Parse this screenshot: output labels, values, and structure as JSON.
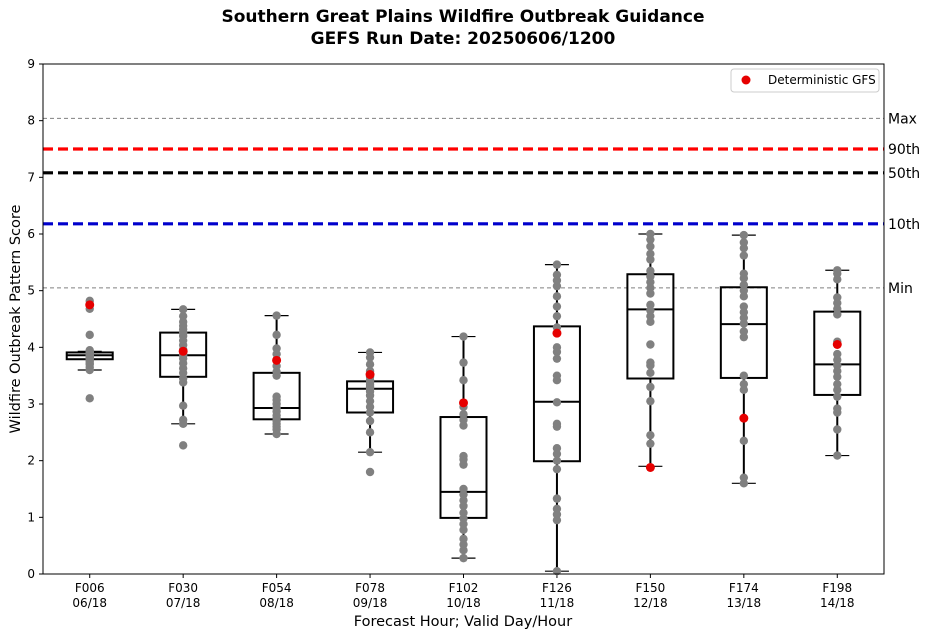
{
  "chart_data": {
    "type": "box",
    "title": "Southern Great Plains Wildfire Outbreak Guidance",
    "subtitle": "GEFS Run Date: 20250606/1200",
    "xlabel": "Forecast Hour; Valid Day/Hour",
    "ylabel": "Wildfire Outbreak Pattern Score",
    "ylim": [
      0,
      9
    ],
    "yticks": [
      0,
      1,
      2,
      3,
      4,
      5,
      6,
      7,
      8,
      9
    ],
    "grid": false,
    "legend": {
      "position": "top-right",
      "entries": [
        "Deterministic GFS"
      ]
    },
    "reference_lines": [
      {
        "label": "Max",
        "value": 8.04,
        "color": "#808080",
        "style": "dashed-thin"
      },
      {
        "label": "90th",
        "value": 7.5,
        "color": "#ff0000",
        "style": "dashed-thick"
      },
      {
        "label": "50th",
        "value": 7.08,
        "color": "#000000",
        "style": "dashed-thick"
      },
      {
        "label": "10th",
        "value": 6.18,
        "color": "#0000cc",
        "style": "dashed-thick"
      },
      {
        "label": "Min",
        "value": 5.05,
        "color": "#808080",
        "style": "dashed-thin"
      }
    ],
    "categories": [
      {
        "hour": "F006",
        "valid": "06/18",
        "whisker_low": 3.6,
        "q1": 3.79,
        "median": 3.86,
        "q3": 3.91,
        "whisker_high": 3.93,
        "gfs": 4.75,
        "members": [
          3.1,
          3.6,
          3.65,
          3.7,
          3.72,
          3.75,
          3.78,
          3.8,
          3.82,
          3.84,
          3.85,
          3.86,
          3.87,
          3.88,
          3.89,
          3.9,
          3.91,
          3.92,
          3.93,
          3.95,
          4.22,
          4.68,
          4.82
        ]
      },
      {
        "hour": "F030",
        "valid": "07/18",
        "whisker_low": 2.65,
        "q1": 3.48,
        "median": 3.86,
        "q3": 4.26,
        "whisker_high": 4.67,
        "gfs": 3.93,
        "members": [
          2.27,
          2.65,
          2.72,
          2.97,
          3.38,
          3.45,
          3.55,
          3.63,
          3.72,
          3.8,
          3.86,
          3.9,
          3.96,
          4.04,
          4.12,
          4.2,
          4.26,
          4.32,
          4.38,
          4.45,
          4.55,
          4.67
        ]
      },
      {
        "hour": "F054",
        "valid": "08/18",
        "whisker_low": 2.47,
        "q1": 2.73,
        "median": 2.93,
        "q3": 3.55,
        "whisker_high": 4.56,
        "gfs": 3.77,
        "members": [
          2.47,
          2.55,
          2.6,
          2.65,
          2.7,
          2.75,
          2.8,
          2.87,
          2.93,
          3.0,
          3.07,
          3.13,
          3.5,
          3.57,
          3.67,
          3.78,
          3.88,
          3.98,
          4.22,
          4.56
        ]
      },
      {
        "hour": "F078",
        "valid": "09/18",
        "whisker_low": 2.15,
        "q1": 2.85,
        "median": 3.27,
        "q3": 3.4,
        "whisker_high": 3.91,
        "gfs": 3.52,
        "members": [
          1.8,
          2.15,
          2.5,
          2.7,
          2.85,
          2.95,
          3.05,
          3.15,
          3.22,
          3.27,
          3.3,
          3.34,
          3.38,
          3.42,
          3.48,
          3.58,
          3.7,
          3.82,
          3.91
        ]
      },
      {
        "hour": "F102",
        "valid": "10/18",
        "whisker_low": 0.28,
        "q1": 0.99,
        "median": 1.45,
        "q3": 2.77,
        "whisker_high": 4.19,
        "gfs": 3.02,
        "members": [
          0.28,
          0.42,
          0.52,
          0.62,
          0.78,
          0.88,
          0.98,
          1.08,
          1.2,
          1.3,
          1.4,
          1.5,
          1.93,
          2.02,
          2.08,
          2.62,
          2.72,
          2.82,
          2.95,
          3.42,
          3.73,
          4.19
        ]
      },
      {
        "hour": "F126",
        "valid": "11/18",
        "whisker_low": 0.05,
        "q1": 1.99,
        "median": 3.04,
        "q3": 4.37,
        "whisker_high": 5.46,
        "gfs": 4.25,
        "members": [
          0.05,
          0.95,
          1.05,
          1.15,
          1.33,
          1.85,
          2.0,
          2.12,
          2.22,
          2.6,
          2.65,
          3.03,
          3.42,
          3.5,
          3.8,
          3.92,
          4.0,
          4.35,
          4.55,
          4.72,
          4.9,
          5.08,
          5.18,
          5.28,
          5.46
        ]
      },
      {
        "hour": "F150",
        "valid": "12/18",
        "whisker_low": 1.9,
        "q1": 3.45,
        "median": 4.67,
        "q3": 5.29,
        "whisker_high": 6.0,
        "gfs": 1.88,
        "members": [
          2.3,
          2.45,
          3.05,
          3.3,
          3.55,
          3.68,
          3.73,
          4.05,
          4.45,
          4.55,
          4.65,
          4.75,
          4.95,
          5.05,
          5.15,
          5.25,
          5.35,
          5.55,
          5.65,
          5.78,
          5.9,
          6.0
        ]
      },
      {
        "hour": "F174",
        "valid": "13/18",
        "whisker_low": 1.6,
        "q1": 3.46,
        "median": 4.41,
        "q3": 5.06,
        "whisker_high": 5.98,
        "gfs": 2.75,
        "members": [
          1.6,
          1.7,
          2.35,
          3.25,
          3.35,
          3.5,
          4.18,
          4.28,
          4.42,
          4.52,
          4.62,
          4.72,
          4.9,
          5.0,
          5.1,
          5.22,
          5.3,
          5.62,
          5.75,
          5.85,
          5.98
        ]
      },
      {
        "hour": "F198",
        "valid": "14/18",
        "whisker_low": 2.09,
        "q1": 3.16,
        "median": 3.7,
        "q3": 4.63,
        "whisker_high": 5.36,
        "gfs": 4.05,
        "members": [
          2.09,
          2.55,
          2.85,
          2.92,
          3.13,
          3.25,
          3.35,
          3.48,
          3.58,
          3.68,
          3.78,
          3.88,
          4.1,
          4.58,
          4.68,
          4.78,
          4.88,
          5.2,
          5.3,
          5.36
        ]
      }
    ]
  },
  "colors": {
    "member": "#808080",
    "gfs": "#e60000"
  }
}
